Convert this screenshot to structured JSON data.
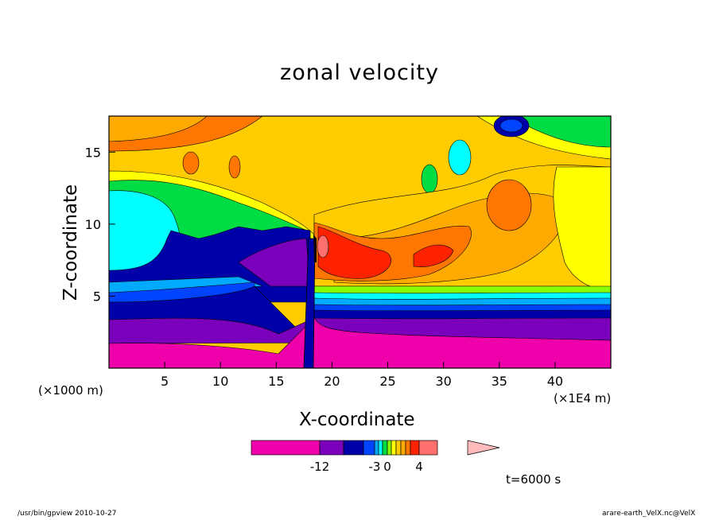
{
  "chart_data": {
    "type": "heatmap",
    "title": "zonal velocity",
    "xlabel": "X-coordinate",
    "ylabel": "Z-coordinate",
    "x_unit_left": "(×1000 m)",
    "x_unit_right": "(×1E4 m)",
    "x_ticks": [
      "5",
      "10",
      "15",
      "20",
      "25",
      "30",
      "35",
      "40"
    ],
    "y_ticks": [
      "5",
      "10",
      "15"
    ],
    "xlim": [
      0,
      45
    ],
    "ylim": [
      0,
      17.5
    ],
    "colorbar_labels": [
      "-12",
      "-3",
      "0",
      "4"
    ],
    "colorbar_colors": [
      "#ee00aa",
      "#7a00bb",
      "#0000a8",
      "#0044ff",
      "#00aaff",
      "#00ffff",
      "#00dd44",
      "#88ff00",
      "#ffff00",
      "#ffcc00",
      "#ffaa00",
      "#ff7700",
      "#ff2200",
      "#ff6f6f",
      "#ffbbbb"
    ],
    "annotation": "t=6000 s"
  },
  "footer": {
    "left": "/usr/bin/gpview   2010-10-27",
    "right": "arare-earth_VelX.nc@VelX"
  },
  "colors": {
    "magenta": "#ee00aa",
    "purple": "#7a00bb",
    "navy": "#0000a8",
    "blue": "#0044ff",
    "sky": "#00aaff",
    "cyan": "#00ffff",
    "green": "#00dd44",
    "lime": "#88ff00",
    "yellow": "#ffff00",
    "gold": "#ffcc00",
    "amber": "#ffaa00",
    "orange": "#ff7700",
    "red": "#ff2200",
    "salmon": "#ff6f6f",
    "pink": "#ffbbbb"
  }
}
